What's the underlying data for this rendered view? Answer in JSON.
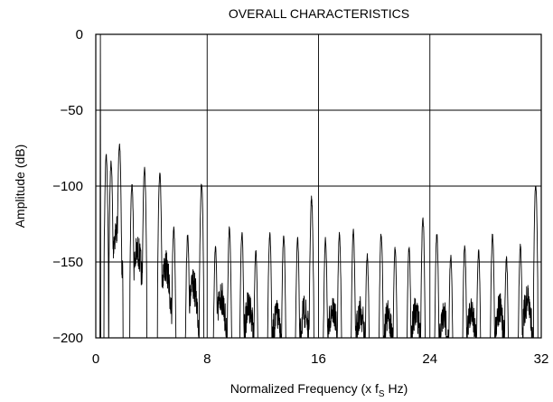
{
  "chart_data": {
    "type": "line",
    "title": "OVERALL CHARACTERISTICS",
    "xlabel": "Normalized Frequency (x f",
    "xlabel_sub": "S",
    "xlabel_suffix": " Hz)",
    "ylabel": "Amplitude (dB)",
    "xlim": [
      0,
      32
    ],
    "ylim": [
      -200,
      0
    ],
    "x_ticks": [
      0,
      8,
      16,
      24,
      32
    ],
    "y_ticks": [
      0,
      -50,
      -100,
      -150,
      -200
    ],
    "y_tick_labels": [
      "0",
      "−50",
      "−100",
      "−150",
      "−200"
    ],
    "grid": true,
    "series": [
      {
        "lobes": [
          {
            "x": 0.75,
            "peak": -80
          },
          {
            "x": 1.1,
            "peak": -85
          },
          {
            "x": 1.7,
            "peak": -72
          },
          {
            "x": 2.6,
            "peak": -100
          },
          {
            "x": 3.5,
            "peak": -88
          },
          {
            "x": 4.6,
            "peak": -92
          },
          {
            "x": 5.6,
            "peak": -128
          },
          {
            "x": 6.6,
            "peak": -132
          },
          {
            "x": 7.6,
            "peak": -98
          },
          {
            "x": 8.6,
            "peak": -140
          },
          {
            "x": 9.6,
            "peak": -128
          },
          {
            "x": 10.5,
            "peak": -132
          },
          {
            "x": 11.5,
            "peak": -143
          },
          {
            "x": 12.5,
            "peak": -132
          },
          {
            "x": 13.5,
            "peak": -132
          },
          {
            "x": 14.5,
            "peak": -135
          },
          {
            "x": 15.5,
            "peak": -108
          },
          {
            "x": 16.5,
            "peak": -135
          },
          {
            "x": 17.5,
            "peak": -132
          },
          {
            "x": 18.5,
            "peak": -130
          },
          {
            "x": 19.5,
            "peak": -146
          },
          {
            "x": 20.5,
            "peak": -132
          },
          {
            "x": 21.5,
            "peak": -142
          },
          {
            "x": 22.5,
            "peak": -141
          },
          {
            "x": 23.5,
            "peak": -122
          },
          {
            "x": 24.5,
            "peak": -132
          },
          {
            "x": 25.5,
            "peak": -146
          },
          {
            "x": 26.5,
            "peak": -140
          },
          {
            "x": 27.5,
            "peak": -143
          },
          {
            "x": 28.5,
            "peak": -132
          },
          {
            "x": 29.5,
            "peak": -148
          },
          {
            "x": 30.5,
            "peak": -139
          },
          {
            "x": 31.6,
            "peak": -100
          }
        ],
        "noise_floor_bumps": [
          {
            "x": 1.5,
            "top": -118
          },
          {
            "x": 3.0,
            "top": -132
          },
          {
            "x": 5.0,
            "top": -142
          },
          {
            "x": 7.0,
            "top": -155
          },
          {
            "x": 9.0,
            "top": -162
          },
          {
            "x": 11.0,
            "top": -168
          },
          {
            "x": 13.0,
            "top": -175
          },
          {
            "x": 15.0,
            "top": -172
          },
          {
            "x": 17.0,
            "top": -170
          },
          {
            "x": 19.0,
            "top": -172
          },
          {
            "x": 21.0,
            "top": -175
          },
          {
            "x": 23.0,
            "top": -172
          },
          {
            "x": 25.0,
            "top": -175
          },
          {
            "x": 27.0,
            "top": -172
          },
          {
            "x": 29.0,
            "top": -170
          },
          {
            "x": 31.0,
            "top": -165
          }
        ]
      }
    ]
  }
}
